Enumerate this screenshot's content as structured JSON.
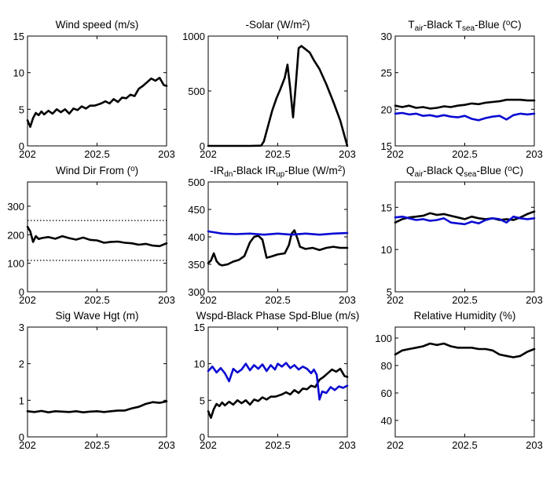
{
  "chart_data": [
    {
      "type": "line",
      "title_parts": [
        [
          "Wind speed (m/s)",
          ""
        ]
      ],
      "xlim": [
        202,
        203
      ],
      "xticks": [
        "202",
        "202.5",
        "203"
      ],
      "ylim": [
        0,
        15
      ],
      "yticks": [
        "0",
        "5",
        "10",
        "15"
      ],
      "series": [
        {
          "color": "#000000",
          "x": [
            202.0,
            202.02,
            202.04,
            202.06,
            202.08,
            202.1,
            202.12,
            202.15,
            202.18,
            202.21,
            202.24,
            202.27,
            202.3,
            202.33,
            202.36,
            202.39,
            202.42,
            202.45,
            202.48,
            202.5,
            202.53,
            202.56,
            202.59,
            202.62,
            202.65,
            202.68,
            202.71,
            202.74,
            202.77,
            202.8,
            202.83,
            202.86,
            202.89,
            202.92,
            202.95,
            202.98,
            203.0
          ],
          "y": [
            3.5,
            2.6,
            3.8,
            4.5,
            4.2,
            4.7,
            4.3,
            4.8,
            4.4,
            5.0,
            4.6,
            5.0,
            4.4,
            5.1,
            4.9,
            5.4,
            5.1,
            5.5,
            5.5,
            5.6,
            5.8,
            6.1,
            5.8,
            6.4,
            6.0,
            6.6,
            6.5,
            7.0,
            6.8,
            7.8,
            8.2,
            8.7,
            9.2,
            8.9,
            9.3,
            8.3,
            8.2
          ]
        }
      ]
    },
    {
      "type": "line",
      "title_parts": [
        [
          "-Solar (W/m",
          ""
        ],
        [
          "2",
          "sup"
        ],
        [
          ")",
          ""
        ]
      ],
      "xlim": [
        202,
        203
      ],
      "xticks": [
        "202",
        "202.5",
        "203"
      ],
      "ylim": [
        0,
        1000
      ],
      "yticks": [
        "0",
        "500",
        "1000"
      ],
      "series": [
        {
          "color": "#000000",
          "x": [
            202.0,
            202.1,
            202.2,
            202.3,
            202.38,
            202.4,
            202.43,
            202.46,
            202.49,
            202.52,
            202.55,
            202.57,
            202.59,
            202.61,
            202.63,
            202.65,
            202.67,
            202.7,
            202.73,
            202.76,
            202.8,
            202.85,
            202.9,
            202.95,
            202.98,
            203.0
          ],
          "y": [
            0,
            0,
            0,
            0,
            2,
            40,
            180,
            320,
            430,
            520,
            620,
            740,
            520,
            260,
            560,
            890,
            910,
            880,
            850,
            780,
            700,
            560,
            400,
            230,
            90,
            0
          ]
        }
      ]
    },
    {
      "type": "line",
      "title_parts": [
        [
          "T",
          ""
        ],
        [
          "air",
          "sub"
        ],
        [
          "-Black  T",
          ""
        ],
        [
          "sea",
          "sub"
        ],
        [
          "-Blue (",
          ""
        ],
        [
          "o",
          "sup"
        ],
        [
          "C)",
          ""
        ]
      ],
      "xlim": [
        202,
        203
      ],
      "xticks": [
        "202",
        "202.5",
        "203"
      ],
      "ylim": [
        15,
        30
      ],
      "yticks": [
        "15",
        "20",
        "25",
        "30"
      ],
      "series": [
        {
          "color": "#000000",
          "x": [
            202.0,
            202.05,
            202.1,
            202.15,
            202.2,
            202.25,
            202.3,
            202.35,
            202.4,
            202.45,
            202.5,
            202.55,
            202.6,
            202.65,
            202.7,
            202.75,
            202.8,
            202.85,
            202.9,
            202.95,
            203.0
          ],
          "y": [
            20.5,
            20.3,
            20.5,
            20.2,
            20.3,
            20.1,
            20.2,
            20.4,
            20.3,
            20.5,
            20.6,
            20.8,
            20.7,
            20.9,
            21.0,
            21.1,
            21.3,
            21.3,
            21.3,
            21.2,
            21.2
          ]
        },
        {
          "color": "#0a0ad2",
          "x": [
            202.0,
            202.05,
            202.1,
            202.15,
            202.2,
            202.25,
            202.3,
            202.35,
            202.4,
            202.45,
            202.5,
            202.55,
            202.6,
            202.65,
            202.7,
            202.75,
            202.8,
            202.85,
            202.9,
            202.95,
            203.0
          ],
          "y": [
            19.4,
            19.5,
            19.3,
            19.4,
            19.1,
            19.2,
            19.0,
            19.2,
            19.0,
            18.9,
            19.1,
            18.7,
            18.5,
            18.8,
            19.0,
            19.1,
            18.6,
            19.2,
            19.4,
            19.3,
            19.4
          ]
        }
      ]
    },
    {
      "type": "line",
      "title_parts": [
        [
          "Wind Dir From (",
          ""
        ],
        [
          "o",
          "sup"
        ],
        [
          ")",
          ""
        ]
      ],
      "xlim": [
        202,
        203
      ],
      "xticks": [
        "202",
        "202.5",
        "203"
      ],
      "ylim": [
        0,
        385
      ],
      "yticks": [
        "0",
        "100",
        "200",
        "300"
      ],
      "reference_lines": [
        250,
        110
      ],
      "series": [
        {
          "color": "#000000",
          "x": [
            202.0,
            202.02,
            202.04,
            202.06,
            202.08,
            202.1,
            202.15,
            202.2,
            202.25,
            202.3,
            202.35,
            202.4,
            202.45,
            202.5,
            202.55,
            202.6,
            202.65,
            202.7,
            202.75,
            202.8,
            202.85,
            202.9,
            202.95,
            203.0
          ],
          "y": [
            228,
            212,
            175,
            195,
            185,
            188,
            192,
            186,
            195,
            188,
            183,
            190,
            182,
            180,
            172,
            175,
            176,
            172,
            170,
            165,
            168,
            162,
            160,
            170
          ]
        }
      ]
    },
    {
      "type": "line",
      "title_parts": [
        [
          "-IR",
          ""
        ],
        [
          "dn",
          "sub"
        ],
        [
          "-Black  IR",
          ""
        ],
        [
          "up",
          "sub"
        ],
        [
          "-Blue (W/m",
          ""
        ],
        [
          "2",
          "sup"
        ],
        [
          ")",
          ""
        ]
      ],
      "xlim": [
        202,
        203
      ],
      "xticks": [
        "202",
        "202.5",
        "203"
      ],
      "ylim": [
        300,
        500
      ],
      "yticks": [
        "300",
        "350",
        "400",
        "450",
        "500"
      ],
      "series": [
        {
          "color": "#000000",
          "x": [
            202.0,
            202.02,
            202.04,
            202.06,
            202.08,
            202.1,
            202.14,
            202.18,
            202.22,
            202.26,
            202.3,
            202.33,
            202.36,
            202.39,
            202.42,
            202.45,
            202.5,
            202.55,
            202.58,
            202.6,
            202.62,
            202.64,
            202.66,
            202.7,
            202.75,
            202.8,
            202.85,
            202.9,
            202.95,
            203.0
          ],
          "y": [
            352,
            357,
            370,
            356,
            350,
            348,
            350,
            355,
            358,
            365,
            390,
            400,
            402,
            395,
            362,
            364,
            368,
            370,
            385,
            406,
            412,
            398,
            382,
            378,
            380,
            376,
            380,
            382,
            380,
            380
          ]
        },
        {
          "color": "#0a0ad2",
          "x": [
            202.0,
            202.05,
            202.1,
            202.2,
            202.3,
            202.4,
            202.5,
            202.6,
            202.7,
            202.8,
            202.9,
            203.0
          ],
          "y": [
            410,
            408,
            406,
            405,
            406,
            404,
            406,
            404,
            406,
            404,
            406,
            407
          ]
        }
      ]
    },
    {
      "type": "line",
      "title_parts": [
        [
          "Q",
          ""
        ],
        [
          "air",
          "sub"
        ],
        [
          "-Black  Q",
          ""
        ],
        [
          "sea",
          "sub"
        ],
        [
          "-Blue (",
          ""
        ],
        [
          "o",
          "sup"
        ],
        [
          "C)",
          ""
        ]
      ],
      "xlim": [
        202,
        203
      ],
      "xticks": [
        "202",
        "202.5",
        "203"
      ],
      "ylim": [
        5,
        18
      ],
      "yticks": [
        "5",
        "10",
        "15"
      ],
      "series": [
        {
          "color": "#000000",
          "x": [
            202.0,
            202.05,
            202.1,
            202.15,
            202.2,
            202.25,
            202.3,
            202.35,
            202.4,
            202.45,
            202.5,
            202.55,
            202.6,
            202.65,
            202.7,
            202.75,
            202.8,
            202.85,
            202.9,
            202.95,
            203.0
          ],
          "y": [
            13.2,
            13.6,
            13.8,
            13.9,
            14.0,
            14.3,
            14.1,
            14.2,
            14.0,
            13.8,
            13.6,
            13.9,
            13.7,
            13.6,
            13.7,
            13.5,
            13.6,
            13.5,
            13.8,
            14.2,
            14.5
          ]
        },
        {
          "color": "#0a0ad2",
          "x": [
            202.0,
            202.05,
            202.1,
            202.15,
            202.2,
            202.25,
            202.3,
            202.35,
            202.4,
            202.45,
            202.5,
            202.55,
            202.6,
            202.65,
            202.7,
            202.75,
            202.8,
            202.85,
            202.9,
            202.95,
            203.0
          ],
          "y": [
            13.8,
            13.9,
            13.7,
            13.5,
            13.6,
            13.4,
            13.5,
            13.7,
            13.2,
            13.1,
            13.0,
            13.3,
            13.1,
            13.5,
            13.7,
            13.6,
            13.2,
            13.9,
            13.7,
            13.6,
            13.7
          ]
        }
      ]
    },
    {
      "type": "line",
      "title_parts": [
        [
          "Sig Wave Hgt (m)",
          ""
        ]
      ],
      "xlim": [
        202,
        203
      ],
      "xticks": [
        "202",
        "202.5",
        "203"
      ],
      "ylim": [
        0,
        3
      ],
      "yticks": [
        "0",
        "1",
        "2",
        "3"
      ],
      "series": [
        {
          "color": "#000000",
          "x": [
            202.0,
            202.05,
            202.1,
            202.15,
            202.2,
            202.25,
            202.3,
            202.35,
            202.4,
            202.45,
            202.5,
            202.55,
            202.6,
            202.65,
            202.7,
            202.75,
            202.8,
            202.85,
            202.9,
            202.95,
            203.0
          ],
          "y": [
            0.7,
            0.68,
            0.71,
            0.67,
            0.7,
            0.69,
            0.68,
            0.7,
            0.67,
            0.69,
            0.7,
            0.68,
            0.7,
            0.72,
            0.72,
            0.78,
            0.82,
            0.9,
            0.95,
            0.93,
            0.97
          ]
        }
      ]
    },
    {
      "type": "line",
      "title_parts": [
        [
          "Wspd-Black  Phase Spd-Blue (m/s)",
          ""
        ]
      ],
      "xlim": [
        202,
        203
      ],
      "xticks": [
        "202",
        "202.5",
        "203"
      ],
      "ylim": [
        0,
        15
      ],
      "yticks": [
        "0",
        "5",
        "10",
        "15"
      ],
      "series": [
        {
          "color": "#000000",
          "x": [
            202.0,
            202.02,
            202.04,
            202.06,
            202.08,
            202.1,
            202.12,
            202.15,
            202.18,
            202.21,
            202.24,
            202.27,
            202.3,
            202.33,
            202.36,
            202.39,
            202.42,
            202.45,
            202.48,
            202.5,
            202.53,
            202.56,
            202.59,
            202.62,
            202.65,
            202.68,
            202.71,
            202.74,
            202.77,
            202.8,
            202.83,
            202.86,
            202.89,
            202.92,
            202.95,
            202.98,
            203.0
          ],
          "y": [
            3.5,
            2.6,
            3.8,
            4.5,
            4.2,
            4.7,
            4.3,
            4.8,
            4.4,
            5.0,
            4.6,
            5.0,
            4.4,
            5.1,
            4.9,
            5.4,
            5.1,
            5.5,
            5.5,
            5.6,
            5.8,
            6.1,
            5.8,
            6.4,
            6.0,
            6.6,
            6.5,
            7.0,
            6.8,
            7.8,
            8.2,
            8.7,
            9.2,
            8.9,
            9.3,
            8.3,
            8.2
          ]
        },
        {
          "color": "#0a0ad2",
          "x": [
            202.0,
            202.03,
            202.06,
            202.09,
            202.12,
            202.15,
            202.18,
            202.21,
            202.24,
            202.27,
            202.3,
            202.33,
            202.36,
            202.39,
            202.42,
            202.45,
            202.48,
            202.5,
            202.53,
            202.56,
            202.59,
            202.62,
            202.65,
            202.68,
            202.71,
            202.74,
            202.76,
            202.78,
            202.8,
            202.82,
            202.85,
            202.88,
            202.91,
            202.94,
            202.97,
            203.0
          ],
          "y": [
            9.0,
            9.6,
            8.8,
            9.4,
            8.7,
            7.6,
            9.3,
            8.8,
            9.2,
            10.0,
            9.1,
            9.8,
            9.3,
            9.9,
            9.0,
            9.8,
            9.2,
            10.0,
            9.6,
            10.1,
            9.4,
            9.8,
            9.2,
            9.6,
            9.3,
            8.7,
            9.2,
            8.5,
            5.1,
            6.2,
            6.0,
            6.8,
            6.4,
            6.9,
            6.7,
            7.0
          ]
        }
      ]
    },
    {
      "type": "line",
      "title_parts": [
        [
          "Relative Humidity (%)",
          ""
        ]
      ],
      "xlim": [
        202,
        203
      ],
      "xticks": [
        "202",
        "202.5",
        "203"
      ],
      "ylim": [
        28,
        108
      ],
      "yticks": [
        "40",
        "60",
        "80",
        "100"
      ],
      "series": [
        {
          "color": "#000000",
          "x": [
            202.0,
            202.05,
            202.1,
            202.15,
            202.2,
            202.25,
            202.3,
            202.35,
            202.4,
            202.45,
            202.5,
            202.55,
            202.6,
            202.65,
            202.7,
            202.75,
            202.8,
            202.85,
            202.9,
            202.95,
            203.0
          ],
          "y": [
            88,
            91,
            92,
            93,
            94,
            96,
            95,
            96,
            94,
            93,
            93,
            93,
            92,
            92,
            91,
            88,
            87,
            86,
            87,
            90,
            92
          ]
        }
      ]
    }
  ]
}
